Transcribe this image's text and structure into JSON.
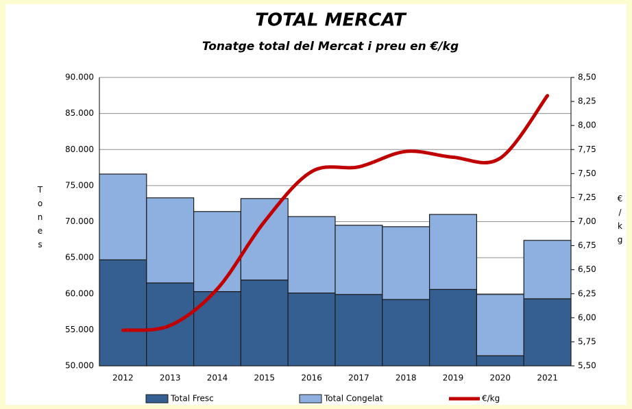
{
  "chart_data": {
    "type": "bar",
    "title": "TOTAL MERCAT",
    "subtitle": "Tonatge total del Mercat i preu en €/kg",
    "y_label": "Tones",
    "y2_label": "€/kg",
    "categories": [
      "2012",
      "2013",
      "2014",
      "2015",
      "2016",
      "2017",
      "2018",
      "2019",
      "2020",
      "2021"
    ],
    "series": [
      {
        "name": "Total Fresc",
        "color": "#355f91",
        "stack": true,
        "values": [
          64700,
          61500,
          60300,
          61900,
          60100,
          59900,
          59200,
          60600,
          51400,
          59300
        ]
      },
      {
        "name": "Total Congelat",
        "color": "#8db0e0",
        "stack": true,
        "values": [
          11900,
          11800,
          11100,
          11300,
          10600,
          9600,
          10100,
          10400,
          8500,
          8100
        ]
      },
      {
        "name": "€/kg",
        "color": "#c00000",
        "axis": "y2",
        "line": true,
        "values": [
          5.87,
          5.92,
          6.3,
          7.0,
          7.52,
          7.57,
          7.73,
          7.67,
          7.66,
          8.31
        ]
      }
    ],
    "ylim": [
      50000,
      90000
    ],
    "yticks": [
      {
        "value": 50000,
        "label": "50.000"
      },
      {
        "value": 55000,
        "label": "55.000"
      },
      {
        "value": 60000,
        "label": "60.000"
      },
      {
        "value": 65000,
        "label": "65.000"
      },
      {
        "value": 70000,
        "label": "70.000"
      },
      {
        "value": 75000,
        "label": "75.000"
      },
      {
        "value": 80000,
        "label": "80.000"
      },
      {
        "value": 85000,
        "label": "85.000"
      },
      {
        "value": 90000,
        "label": "90.000"
      }
    ],
    "y2lim": [
      5.5,
      8.5
    ],
    "y2ticks": [
      {
        "value": 5.5,
        "label": "5,50"
      },
      {
        "value": 5.75,
        "label": "5,75"
      },
      {
        "value": 6,
        "label": "6,00"
      },
      {
        "value": 6.25,
        "label": "6,25"
      },
      {
        "value": 6.5,
        "label": "6,50"
      },
      {
        "value": 6.75,
        "label": "6,75"
      },
      {
        "value": 7,
        "label": "7,00"
      },
      {
        "value": 7.25,
        "label": "7,25"
      },
      {
        "value": 7.5,
        "label": "7,50"
      },
      {
        "value": 7.75,
        "label": "7,75"
      },
      {
        "value": 8,
        "label": "8,00"
      },
      {
        "value": 8.25,
        "label": "8,25"
      },
      {
        "value": 8.5,
        "label": "8,50"
      }
    ],
    "grid": true,
    "legend": "bottom"
  }
}
